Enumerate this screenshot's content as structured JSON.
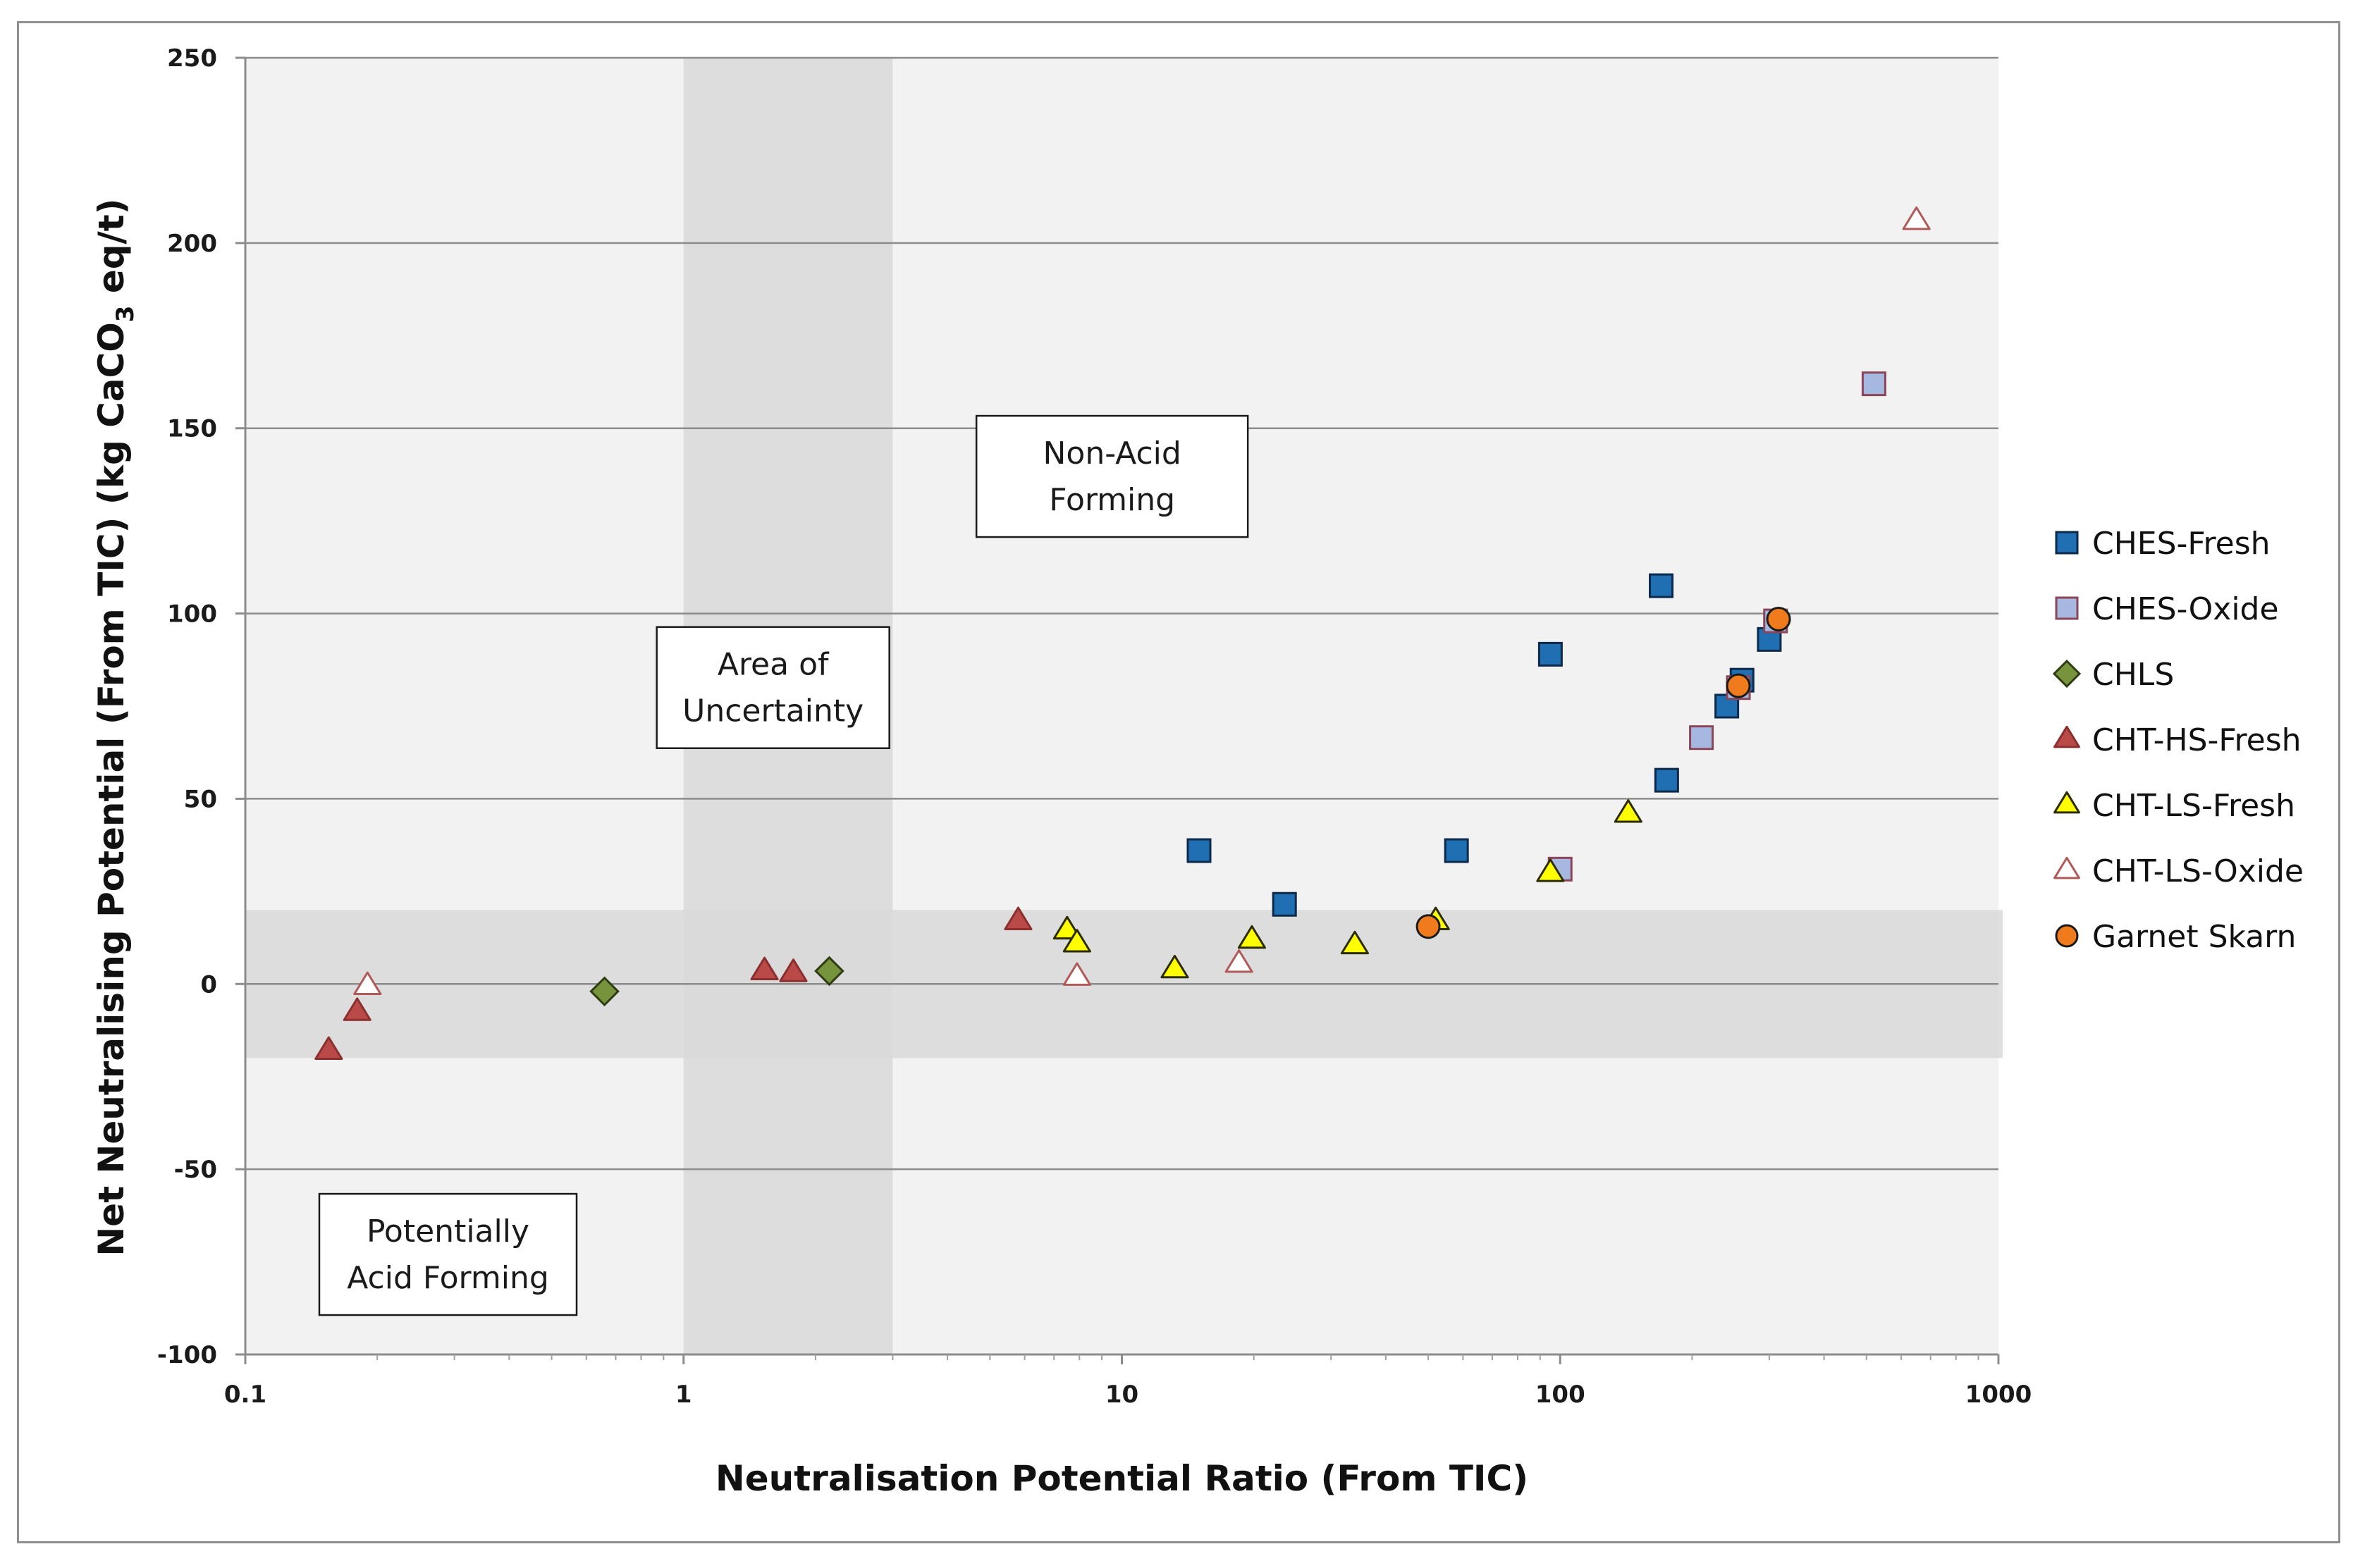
{
  "chart_data": {
    "type": "scatter",
    "title": "",
    "xlabel": "Neutralisation Potential Ratio (From TIC)",
    "ylabel": "Net Neutralising Potential (From TIC) (kg CaCO",
    "ylabel_sub": "3",
    "ylabel_tail": " eq/t)",
    "x_scale": "log",
    "xlim": [
      0.1,
      1000
    ],
    "ylim": [
      -100,
      250
    ],
    "x_ticks": [
      0.1,
      1,
      10,
      100,
      1000
    ],
    "x_tick_labels": [
      "0.1",
      "1",
      "10",
      "100",
      "1000"
    ],
    "y_ticks": [
      -100,
      -50,
      0,
      50,
      100,
      150,
      200,
      250
    ],
    "y_tick_labels": [
      "-100",
      "-50",
      "0",
      "50",
      "100",
      "150",
      "200",
      "250"
    ],
    "grid": "horizontal",
    "legend_position": "right",
    "bands": [
      {
        "name": "uncertainty-x-band",
        "x_range": [
          1,
          3
        ]
      },
      {
        "name": "uncertainty-y-band",
        "y_range": [
          -20,
          20
        ]
      }
    ],
    "annotations": [
      {
        "name": "non-acid-forming-label",
        "lines": [
          "Non-Acid",
          "Forming"
        ],
        "x": 9.5,
        "y": 137
      },
      {
        "name": "area-of-uncertainty-label",
        "lines": [
          "Area of",
          "Uncertainty"
        ],
        "x": 1.6,
        "y": 80
      },
      {
        "name": "potentially-acid-forming-label",
        "lines": [
          "Potentially",
          "Acid Forming"
        ],
        "x": 0.29,
        "y": -73
      }
    ],
    "series": [
      {
        "name": "CHES-Fresh",
        "marker": "square",
        "fill": "#1f6fb2",
        "stroke": "#0d2a4a",
        "points": [
          [
            15,
            36
          ],
          [
            23.5,
            21.5
          ],
          [
            58,
            36
          ],
          [
            95,
            89
          ],
          [
            170,
            107.5
          ],
          [
            175,
            55
          ],
          [
            240,
            75
          ],
          [
            260,
            82
          ],
          [
            300,
            93
          ]
        ]
      },
      {
        "name": "CHES-Oxide",
        "marker": "square",
        "fill": "#a6b8e0",
        "stroke": "#8b4558",
        "points": [
          [
            100,
            31
          ],
          [
            210,
            66.5
          ],
          [
            255,
            80
          ],
          [
            310,
            98
          ],
          [
            520,
            162
          ]
        ]
      },
      {
        "name": "CHLS",
        "marker": "diamond",
        "fill": "#77933c",
        "stroke": "#2e3d14",
        "points": [
          [
            0.66,
            -2
          ],
          [
            2.15,
            3.5
          ]
        ]
      },
      {
        "name": "CHT-HS-Fresh",
        "marker": "triangle",
        "fill": "#b94a48",
        "stroke": "#8b2f2e",
        "points": [
          [
            0.155,
            -18
          ],
          [
            0.18,
            -7.5
          ],
          [
            1.53,
            3.5
          ],
          [
            1.78,
            3
          ],
          [
            5.8,
            17
          ]
        ]
      },
      {
        "name": "CHT-LS-Fresh",
        "marker": "triangle",
        "fill": "#ffff00",
        "stroke": "#2b2b00",
        "points": [
          [
            7.5,
            14.5
          ],
          [
            7.9,
            11
          ],
          [
            13.2,
            4
          ],
          [
            19.8,
            12
          ],
          [
            34,
            10.5
          ],
          [
            52,
            17
          ],
          [
            95,
            30
          ],
          [
            143,
            46
          ]
        ]
      },
      {
        "name": "CHT-LS-Oxide",
        "marker": "triangle",
        "fill": "#ffffff",
        "stroke": "#b05a5a",
        "points": [
          [
            0.19,
            -0.5
          ],
          [
            7.9,
            2
          ],
          [
            18.5,
            5.5
          ],
          [
            650,
            206
          ]
        ]
      },
      {
        "name": "Garnet Skarn",
        "marker": "circle",
        "fill": "#f07b1d",
        "stroke": "#1a1a1a",
        "points": [
          [
            50,
            15.5
          ],
          [
            255,
            80.5
          ],
          [
            315,
            98.5
          ]
        ]
      }
    ]
  }
}
